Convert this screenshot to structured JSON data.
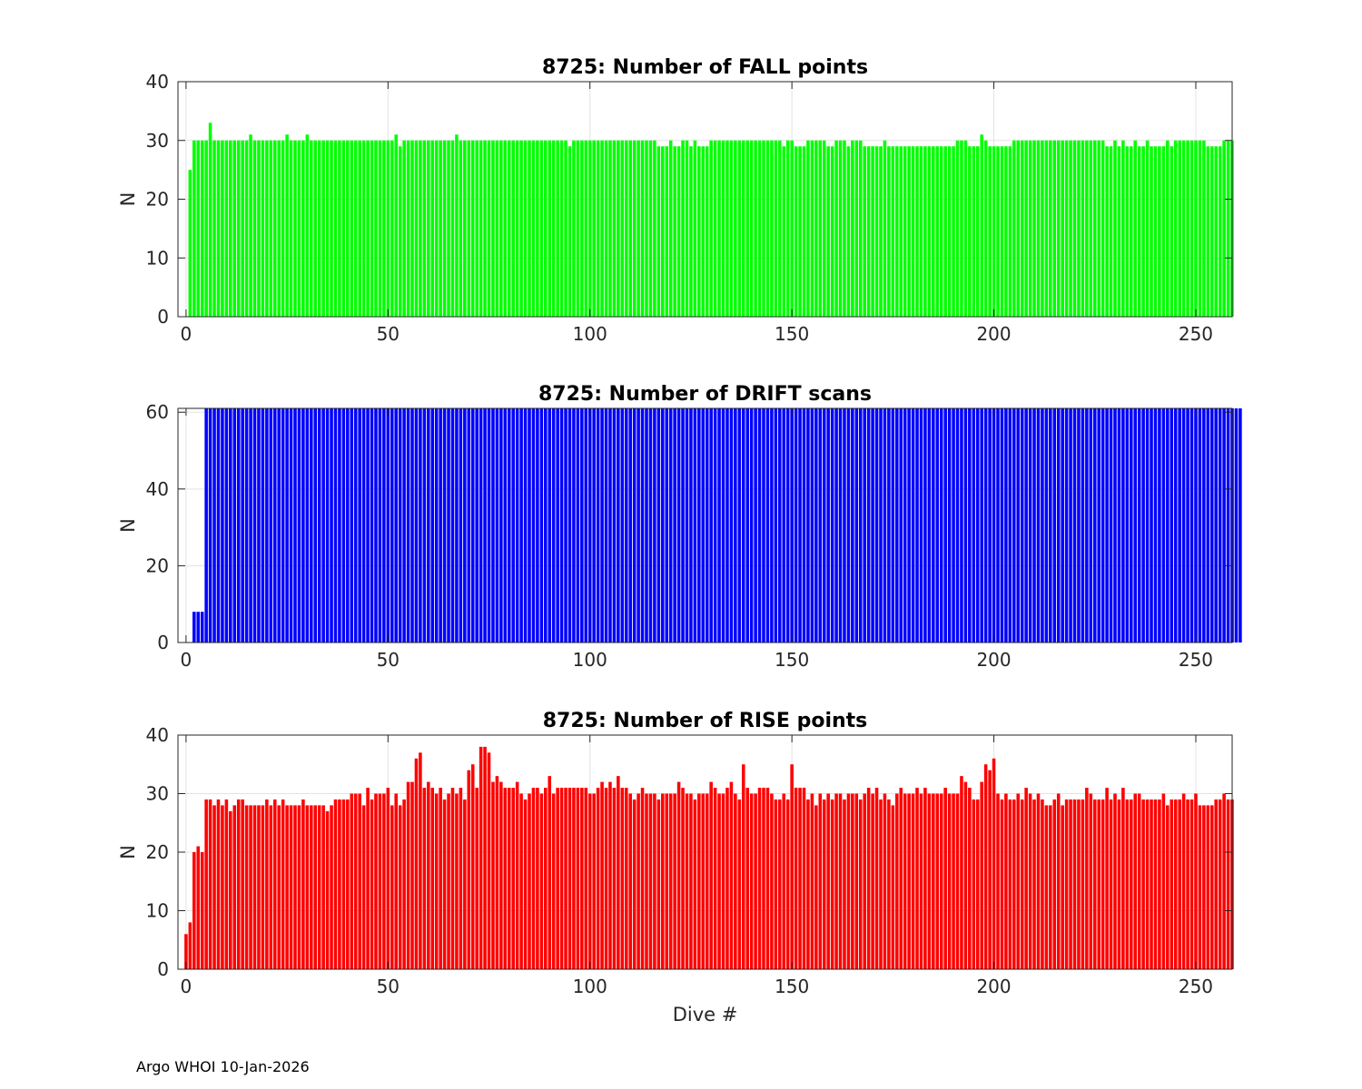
{
  "footer": "Argo WHOI 10-Jan-2026",
  "chart_data": [
    {
      "type": "bar",
      "title": "8725: Number of FALL points",
      "xlabel": "",
      "ylabel": "N",
      "color": "#00ff00",
      "xlim": [
        -2,
        259
      ],
      "ylim": [
        0,
        40
      ],
      "xticks": [
        0,
        50,
        100,
        150,
        200,
        250
      ],
      "yticks": [
        0,
        10,
        20,
        30,
        40
      ],
      "grid": true,
      "values_start_x": 1,
      "values": [
        25,
        30,
        30,
        30,
        30,
        33,
        30,
        30,
        30,
        30,
        30,
        30,
        30,
        30,
        30,
        31,
        30,
        30,
        30,
        30,
        30,
        30,
        30,
        30,
        31,
        30,
        30,
        30,
        30,
        31,
        30,
        30,
        30,
        30,
        30,
        30,
        30,
        30,
        30,
        30,
        30,
        30,
        30,
        30,
        30,
        30,
        30,
        30,
        30,
        30,
        30,
        31,
        29,
        30,
        30,
        30,
        30,
        30,
        30,
        30,
        30,
        30,
        30,
        30,
        30,
        30,
        31,
        30,
        30,
        30,
        30,
        30,
        30,
        30,
        30,
        30,
        30,
        30,
        30,
        30,
        30,
        30,
        30,
        30,
        30,
        30,
        30,
        30,
        30,
        30,
        30,
        30,
        30,
        30,
        29,
        30,
        30,
        30,
        30,
        30,
        30,
        30,
        30,
        30,
        30,
        30,
        30,
        30,
        30,
        30,
        30,
        30,
        30,
        30,
        30,
        30,
        29,
        29,
        29,
        30,
        29,
        29,
        30,
        30,
        29,
        30,
        29,
        29,
        29,
        30,
        30,
        30,
        30,
        30,
        30,
        30,
        30,
        30,
        30,
        30,
        30,
        30,
        30,
        30,
        30,
        30,
        30,
        29,
        30,
        30,
        29,
        29,
        29,
        30,
        30,
        30,
        30,
        30,
        29,
        29,
        30,
        30,
        30,
        29,
        30,
        30,
        30,
        29,
        29,
        29,
        29,
        29,
        30,
        29,
        29,
        29,
        29,
        29,
        29,
        29,
        29,
        29,
        29,
        29,
        29,
        29,
        29,
        29,
        29,
        29,
        30,
        30,
        30,
        29,
        29,
        29,
        31,
        30,
        29,
        29,
        29,
        29,
        29,
        29,
        30,
        30,
        30,
        30,
        30,
        30,
        30,
        30,
        30,
        30,
        30,
        30,
        30,
        30,
        30,
        30,
        30,
        30,
        30,
        30,
        30,
        30,
        30,
        29,
        29,
        30,
        29,
        30,
        29,
        29,
        30,
        29,
        29,
        30,
        29,
        29,
        29,
        29,
        30,
        29,
        30,
        30,
        30,
        30,
        30,
        30,
        30,
        30,
        29,
        29,
        29,
        29,
        30,
        30,
        30
      ]
    },
    {
      "type": "bar",
      "title": "8725: Number of DRIFT scans",
      "xlabel": "",
      "ylabel": "N",
      "color": "#0000ff",
      "xlim": [
        -2,
        259
      ],
      "ylim": [
        0,
        61
      ],
      "xticks": [
        0,
        50,
        100,
        150,
        200,
        250
      ],
      "yticks": [
        0,
        20,
        40,
        60
      ],
      "grid": true,
      "values_start_x": 1,
      "values": [
        0,
        8,
        8,
        8,
        61,
        61,
        61,
        61,
        61,
        61,
        61,
        61,
        61,
        61,
        61,
        61,
        61,
        61,
        61,
        61,
        61,
        61,
        61,
        61,
        61,
        61,
        61,
        61,
        61,
        61,
        61,
        61,
        61,
        61,
        61,
        61,
        61,
        61,
        61,
        61,
        61,
        61,
        61,
        61,
        61,
        61,
        61,
        61,
        61,
        61,
        61,
        61,
        61,
        61,
        61,
        61,
        61,
        61,
        61,
        61,
        61,
        61,
        61,
        61,
        61,
        61,
        61,
        61,
        61,
        61,
        61,
        61,
        61,
        61,
        61,
        61,
        61,
        61,
        61,
        61,
        61,
        61,
        61,
        61,
        61,
        61,
        61,
        61,
        61,
        61,
        61,
        61,
        61,
        61,
        61,
        61,
        61,
        61,
        61,
        61,
        61,
        61,
        61,
        61,
        61,
        61,
        61,
        61,
        61,
        61,
        61,
        61,
        61,
        61,
        61,
        61,
        61,
        61,
        61,
        61,
        61,
        61,
        61,
        61,
        61,
        61,
        61,
        61,
        61,
        61,
        61,
        61,
        61,
        61,
        61,
        61,
        61,
        61,
        61,
        61,
        61,
        61,
        61,
        61,
        61,
        61,
        61,
        61,
        61,
        61,
        61,
        61,
        61,
        61,
        61,
        61,
        61,
        61,
        61,
        61,
        61,
        61,
        61,
        61,
        61,
        61,
        61,
        61,
        61,
        61,
        61,
        61,
        61,
        61,
        61,
        61,
        61,
        61,
        61,
        61,
        61,
        61,
        61,
        61,
        61,
        61,
        61,
        61,
        61,
        61,
        61,
        61,
        61,
        61,
        61,
        61,
        61,
        61,
        61,
        61,
        61,
        61,
        61,
        61,
        61,
        61,
        61,
        61,
        61,
        61,
        61,
        61,
        61,
        61,
        61,
        61,
        61,
        61,
        61,
        61,
        61,
        61,
        61,
        61,
        61,
        61,
        61,
        61,
        61,
        61,
        61,
        61,
        61,
        61,
        61,
        61,
        61,
        61,
        61,
        61,
        61,
        61,
        61,
        61,
        61,
        61,
        61,
        61,
        61,
        61,
        61,
        61,
        61,
        61,
        61,
        61,
        61,
        61,
        61,
        61,
        61
      ]
    },
    {
      "type": "bar",
      "title": "8725: Number of RISE points",
      "xlabel": "Dive #",
      "ylabel": "N",
      "color": "#ff0000",
      "xlim": [
        -2,
        259
      ],
      "ylim": [
        0,
        40
      ],
      "xticks": [
        0,
        50,
        100,
        150,
        200,
        250
      ],
      "yticks": [
        0,
        10,
        20,
        30,
        40
      ],
      "grid": true,
      "values_start_x": 0,
      "values": [
        6,
        8,
        20,
        21,
        20,
        29,
        29,
        28,
        29,
        28,
        29,
        27,
        28,
        29,
        29,
        28,
        28,
        28,
        28,
        28,
        29,
        28,
        29,
        28,
        29,
        28,
        28,
        28,
        28,
        29,
        28,
        28,
        28,
        28,
        28,
        27,
        28,
        29,
        29,
        29,
        29,
        30,
        30,
        30,
        28,
        31,
        29,
        30,
        30,
        30,
        31,
        28,
        30,
        28,
        29,
        32,
        32,
        36,
        37,
        31,
        32,
        31,
        30,
        31,
        29,
        30,
        31,
        30,
        31,
        29,
        34,
        35,
        31,
        38,
        38,
        37,
        32,
        33,
        32,
        31,
        31,
        31,
        32,
        30,
        29,
        30,
        31,
        31,
        30,
        31,
        33,
        30,
        31,
        31,
        31,
        31,
        31,
        31,
        31,
        31,
        30,
        30,
        31,
        32,
        31,
        32,
        31,
        33,
        31,
        31,
        30,
        29,
        30,
        31,
        30,
        30,
        30,
        29,
        30,
        30,
        30,
        30,
        32,
        31,
        30,
        30,
        29,
        30,
        30,
        30,
        32,
        31,
        30,
        30,
        31,
        32,
        30,
        29,
        35,
        31,
        30,
        30,
        31,
        31,
        31,
        30,
        29,
        29,
        30,
        29,
        35,
        31,
        31,
        31,
        29,
        30,
        28,
        30,
        29,
        30,
        29,
        30,
        30,
        29,
        30,
        30,
        30,
        29,
        30,
        31,
        30,
        31,
        29,
        30,
        29,
        28,
        30,
        31,
        30,
        30,
        30,
        31,
        30,
        31,
        30,
        30,
        30,
        30,
        31,
        30,
        30,
        30,
        33,
        32,
        31,
        29,
        29,
        32,
        35,
        34,
        36,
        30,
        29,
        30,
        29,
        29,
        30,
        29,
        31,
        30,
        29,
        30,
        29,
        28,
        28,
        29,
        30,
        28,
        29,
        29,
        29,
        29,
        29,
        31,
        30,
        29,
        29,
        29,
        31,
        29,
        30,
        29,
        31,
        29,
        29,
        30,
        30,
        29,
        29,
        29,
        29,
        29,
        30,
        28,
        29,
        29,
        29,
        30,
        29,
        29,
        30,
        28,
        28,
        28,
        28,
        29,
        29,
        30,
        29,
        29
      ]
    }
  ]
}
